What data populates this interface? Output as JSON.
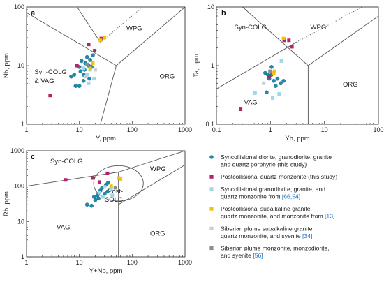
{
  "colors": {
    "syncollisional": "#1f8aa8",
    "postcollisional": "#b5226a",
    "syncollisional_ref": "#9fd7e6",
    "subalkaline_ref": "#f4c20d",
    "siberian_subalkaline": "#c9cfd6",
    "siberian_monzonite": "#8a8f94"
  },
  "legend": [
    {
      "key": "syncollisional",
      "marker": "circle",
      "lines": [
        [
          "Syncollisional diorite, granodiorite, granite"
        ],
        [
          "and quartz porphyrie (this study)"
        ]
      ]
    },
    {
      "key": "postcollisional",
      "marker": "square",
      "lines": [
        [
          "Postcollisional quartz monzonite (this study)"
        ]
      ]
    },
    {
      "key": "syncollisional_ref",
      "marker": "square",
      "lines": [
        [
          "Syncollisional granodiorite, granite, and"
        ],
        [
          "quartz monzonite from ",
          "[66,54]"
        ]
      ]
    },
    {
      "key": "subalkaline_ref",
      "marker": "square",
      "lines": [
        [
          "Postcollisional subalkaline granite,"
        ],
        [
          "quartz monzonite, and monzonite from ",
          "[13]"
        ]
      ]
    },
    {
      "key": "siberian_subalkaline",
      "marker": "square",
      "lines": [
        [
          "Siberian plume subalkaline granite,"
        ],
        [
          "quartz monzonite, and syenite ",
          "[34]"
        ]
      ]
    },
    {
      "key": "siberian_monzonite",
      "marker": "square",
      "lines": [
        [
          "Siberian plume monzonite, monzodiorite,"
        ],
        [
          "and syenite ",
          "[56]"
        ]
      ]
    }
  ],
  "chart_data": [
    {
      "panel": "a",
      "type": "scatter",
      "scale": "log-log",
      "xlabel": "Y, ppm",
      "ylabel": "Nb, ppm",
      "xlim": [
        1,
        1000
      ],
      "ylim": [
        1,
        100
      ],
      "x_ticks": [
        "1",
        "10",
        "100",
        "1000"
      ],
      "y_ticks": [
        "1",
        "10",
        "100"
      ],
      "fields": [
        "WPG",
        "Syn-COLG",
        "& VAG",
        "ORG"
      ],
      "boundaries": [
        [
          [
            1,
            80
          ],
          [
            50,
            10
          ]
        ],
        [
          [
            50,
            10
          ],
          [
            1000,
            100
          ]
        ],
        [
          [
            50,
            10
          ],
          [
            25,
            1
          ]
        ],
        [
          [
            25,
            25
          ],
          [
            1,
            2000
          ]
        ]
      ],
      "dotted_lines": [
        [
          [
            25,
            25
          ],
          [
            1000,
            400
          ]
        ]
      ],
      "series": [
        {
          "key": "syncollisional",
          "points": [
            [
              7,
              6.5
            ],
            [
              8,
              7
            ],
            [
              8.5,
              4.5
            ],
            [
              10,
              9.5
            ],
            [
              10.5,
              8
            ],
            [
              11,
              12
            ],
            [
              12,
              7
            ],
            [
              12,
              5.5
            ],
            [
              13,
              11
            ],
            [
              14,
              14
            ],
            [
              15,
              10
            ],
            [
              15.5,
              6
            ],
            [
              16,
              12.5
            ],
            [
              17,
              9.5
            ],
            [
              18,
              15
            ],
            [
              10,
              4.5
            ],
            [
              12.5,
              8.5
            ]
          ]
        },
        {
          "key": "postcollisional",
          "points": [
            [
              2.8,
              3.1
            ],
            [
              9,
              10
            ],
            [
              15,
              23
            ],
            [
              19.5,
              18
            ],
            [
              26,
              29
            ]
          ]
        },
        {
          "key": "syncollisional_ref",
          "points": [
            [
              14,
              7
            ],
            [
              16,
              8.5
            ],
            [
              15,
              5
            ],
            [
              19,
              6
            ],
            [
              12,
              9
            ]
          ]
        },
        {
          "key": "subalkaline_ref",
          "points": [
            [
              16,
              9
            ],
            [
              18,
              11
            ],
            [
              25,
              27
            ],
            [
              30,
              30
            ]
          ]
        },
        {
          "key": "siberian_subalkaline",
          "points": [
            [
              20,
              8.5
            ],
            [
              13,
              6.5
            ]
          ]
        },
        {
          "key": "siberian_monzonite",
          "points": [
            [
              14,
              10.5
            ]
          ]
        }
      ]
    },
    {
      "panel": "b",
      "type": "scatter",
      "scale": "log-log",
      "xlabel": "Yb, ppm",
      "ylabel": "Ta, ppm",
      "xlim": [
        0.1,
        100
      ],
      "ylim": [
        0.1,
        10
      ],
      "x_ticks": [
        "0.1",
        "1",
        "10",
        "100"
      ],
      "y_ticks": [
        "0.1",
        "1",
        "10"
      ],
      "fields": [
        "Syn-COLG",
        "WPG",
        "VAG",
        "ORG"
      ],
      "boundaries": [
        [
          [
            0.1,
            25
          ],
          [
            5,
            1
          ]
        ],
        [
          [
            5,
            1
          ],
          [
            100,
            7
          ]
        ],
        [
          [
            5,
            1
          ],
          [
            5,
            0.1
          ]
        ],
        [
          [
            0.1,
            0.4
          ],
          [
            3,
            2.5
          ]
        ]
      ],
      "dotted_lines": [
        [
          [
            3,
            2.5
          ],
          [
            50,
            10
          ]
        ]
      ],
      "series": [
        {
          "key": "syncollisional",
          "points": [
            [
              0.8,
              0.75
            ],
            [
              0.9,
              0.7
            ],
            [
              1.05,
              0.7
            ],
            [
              1.15,
              0.55
            ],
            [
              1.35,
              0.6
            ],
            [
              1.55,
              0.5
            ],
            [
              1.75,
              0.55
            ],
            [
              0.95,
              0.6
            ],
            [
              0.85,
              0.35
            ],
            [
              1.25,
              0.45
            ],
            [
              1.05,
              0.95
            ]
          ]
        },
        {
          "key": "postcollisional",
          "points": [
            [
              0.28,
              0.18
            ],
            [
              0.95,
              0.65
            ],
            [
              1.8,
              2.7
            ],
            [
              2.2,
              2.7
            ],
            [
              2.5,
              2.1
            ]
          ]
        },
        {
          "key": "syncollisional_ref",
          "points": [
            [
              0.52,
              0.34
            ],
            [
              1.1,
              0.28
            ],
            [
              1.45,
              0.33
            ],
            [
              1.6,
              1.2
            ]
          ]
        },
        {
          "key": "subalkaline_ref",
          "points": [
            [
              1.2,
              0.8
            ],
            [
              1.75,
              2.9
            ],
            [
              1.15,
              0.75
            ]
          ]
        },
        {
          "key": "siberian_subalkaline",
          "points": [
            [
              0.75,
              0.5
            ]
          ]
        },
        {
          "key": "siberian_monzonite",
          "points": [
            [
              0.98,
              0.8
            ]
          ]
        }
      ]
    },
    {
      "panel": "c",
      "type": "scatter",
      "scale": "log-log",
      "xlabel": "Y+Nb, ppm",
      "ylabel": "Rb, ppm",
      "xlim": [
        1,
        1000
      ],
      "ylim": [
        1,
        1000
      ],
      "x_ticks": [
        "1",
        "10",
        "100",
        "1000"
      ],
      "y_ticks": [
        "1",
        "10",
        "100",
        "1000"
      ],
      "fields": [
        "Syn-COLG",
        "WPG",
        "Post-",
        "COLG",
        "VAG",
        "ORG"
      ],
      "boundaries": [
        [
          [
            1,
            100
          ],
          [
            55,
            250
          ]
        ],
        [
          [
            55,
            250
          ],
          [
            1000,
            1000
          ]
        ],
        [
          [
            55,
            250
          ],
          [
            55,
            1
          ]
        ],
        [
          [
            55,
            30
          ],
          [
            1000,
            400
          ]
        ]
      ],
      "ellipse": {
        "cx": 55,
        "cy": 120,
        "rx_decades": 0.47,
        "ry_decades": 0.5
      },
      "series": [
        {
          "key": "syncollisional",
          "points": [
            [
              14,
              30
            ],
            [
              17,
              28
            ],
            [
              19,
              50
            ],
            [
              22,
              55
            ],
            [
              25,
              75
            ],
            [
              27,
              90
            ],
            [
              30,
              60
            ],
            [
              32,
              110
            ],
            [
              34,
              70
            ],
            [
              23,
              45
            ],
            [
              35,
              125
            ],
            [
              20,
              40
            ]
          ]
        },
        {
          "key": "postcollisional",
          "points": [
            [
              5.5,
              150
            ],
            [
              18,
              170
            ],
            [
              24,
              130
            ],
            [
              34,
              230
            ]
          ]
        },
        {
          "key": "syncollisional_ref",
          "points": [
            [
              24,
              65
            ],
            [
              28,
              50
            ],
            [
              40,
              85
            ],
            [
              42,
              55
            ]
          ]
        },
        {
          "key": "subalkaline_ref",
          "points": [
            [
              40,
              100
            ],
            [
              55,
              170
            ],
            [
              60,
              160
            ]
          ]
        },
        {
          "key": "siberian_subalkaline",
          "points": [
            [
              30,
              95
            ]
          ]
        },
        {
          "key": "siberian_monzonite",
          "points": [
            [
              48,
              90
            ]
          ]
        }
      ]
    }
  ]
}
